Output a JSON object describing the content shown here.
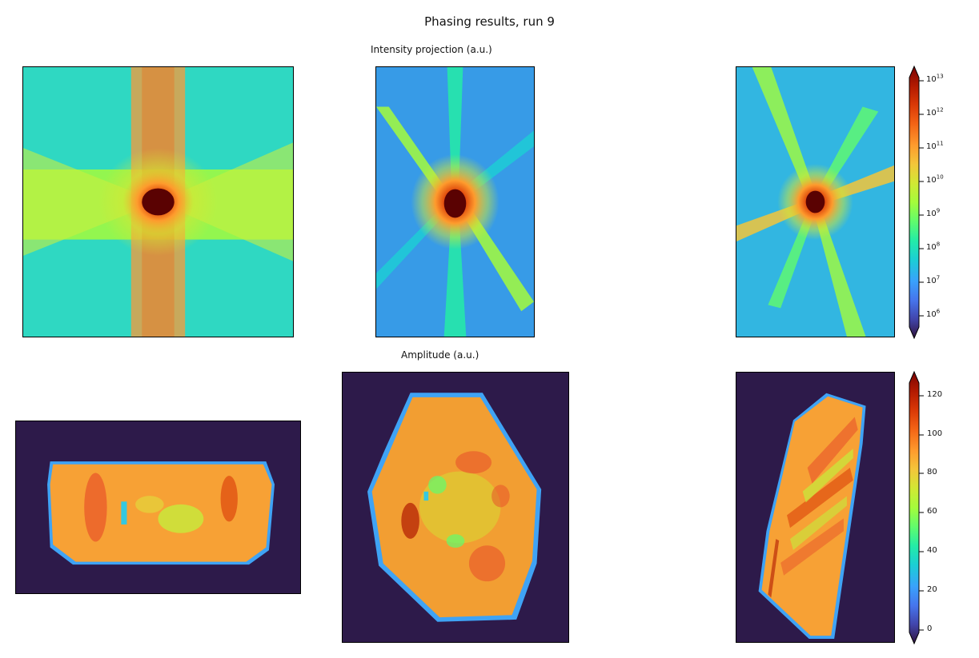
{
  "figure": {
    "title": "Phasing results, run 9",
    "row1_title": "Intensity projection (a.u.)",
    "row2_title": "Amplitude (a.u.)"
  },
  "colormap": {
    "name": "turbo",
    "stops": [
      "#30123b",
      "#4145ab",
      "#4675ed",
      "#39a2fc",
      "#1bcfd4",
      "#24eca6",
      "#61fc6c",
      "#a4fc3b",
      "#d1e834",
      "#f3c63a",
      "#fe9b2d",
      "#f36315",
      "#d93806",
      "#b11901",
      "#7a0402"
    ]
  },
  "colorbar_intensity": {
    "scale": "log",
    "ticks": [
      {
        "base": "10",
        "exp": "13"
      },
      {
        "base": "10",
        "exp": "12"
      },
      {
        "base": "10",
        "exp": "11"
      },
      {
        "base": "10",
        "exp": "10"
      },
      {
        "base": "10",
        "exp": "9"
      },
      {
        "base": "10",
        "exp": "8"
      },
      {
        "base": "10",
        "exp": "7"
      },
      {
        "base": "10",
        "exp": "6"
      }
    ]
  },
  "colorbar_amplitude": {
    "scale": "linear",
    "ticks": [
      "120",
      "100",
      "80",
      "60",
      "40",
      "20",
      "0"
    ]
  }
}
